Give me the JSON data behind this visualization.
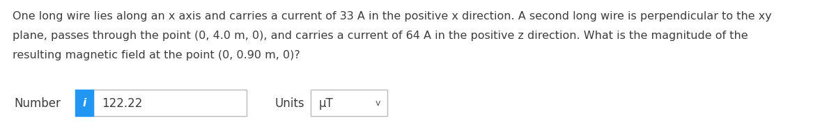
{
  "background_color": "#ffffff",
  "text_lines": [
    "One long wire lies along an x axis and carries a current of 33 A in the positive x direction. A second long wire is perpendicular to the xy",
    "plane, passes through the point (0, 4.0 m, 0), and carries a current of 64 A in the positive z direction. What is the magnitude of the",
    "resulting magnetic field at the point (0, 0.90 m, 0)?"
  ],
  "text_color": "#3d3d3d",
  "text_fontsize": 11.5,
  "label_number": "Number",
  "label_units": "Units",
  "value_number": "122.22",
  "value_units": "μT",
  "info_bg": "#2196F3",
  "info_text": "i",
  "box_border_color": "#bbbbbb",
  "box_bg": "#ffffff",
  "label_fontsize": 12,
  "value_fontsize": 12,
  "chevron": "v"
}
